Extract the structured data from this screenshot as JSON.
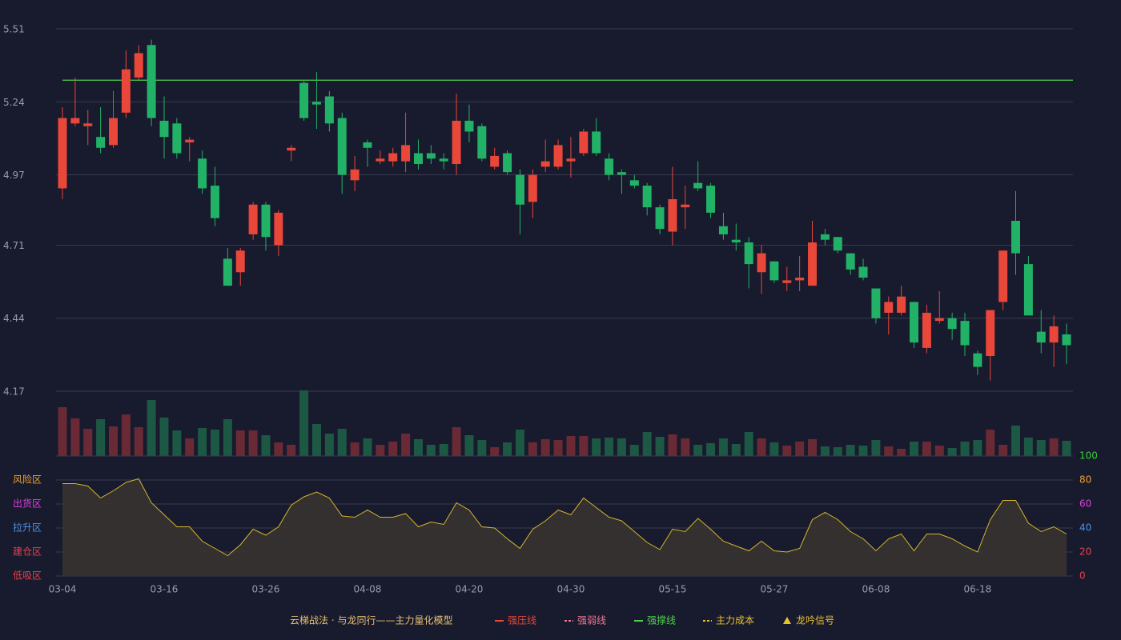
{
  "chart_data": [
    {
      "type": "candlestick",
      "categories": [
        "03-04",
        null,
        null,
        null,
        null,
        null,
        null,
        null,
        "03-16",
        null,
        null,
        null,
        null,
        null,
        null,
        null,
        "03-26",
        null,
        null,
        null,
        null,
        null,
        null,
        null,
        "04-08",
        null,
        null,
        null,
        null,
        null,
        null,
        null,
        "04-20",
        null,
        null,
        null,
        null,
        null,
        null,
        null,
        "04-30",
        null,
        null,
        null,
        null,
        null,
        null,
        null,
        "05-15",
        null,
        null,
        null,
        null,
        null,
        null,
        null,
        "05-27",
        null,
        null,
        null,
        null,
        null,
        null,
        null,
        "06-08",
        null,
        null,
        null,
        null,
        null,
        null,
        null,
        "06-18",
        null,
        null,
        null,
        null,
        null,
        null,
        null
      ],
      "open": [
        4.92,
        5.16,
        5.15,
        5.11,
        5.08,
        5.2,
        5.33,
        5.45,
        5.17,
        5.16,
        5.09,
        5.03,
        4.93,
        4.66,
        4.61,
        4.75,
        4.86,
        4.71,
        5.06,
        5.31,
        5.24,
        5.26,
        5.18,
        4.95,
        5.09,
        5.02,
        5.02,
        5.02,
        5.05,
        5.05,
        5.03,
        5.01,
        5.17,
        5.15,
        5.0,
        5.05,
        4.97,
        4.87,
        5.0,
        5.0,
        5.02,
        5.05,
        5.13,
        5.03,
        4.98,
        4.95,
        4.93,
        4.85,
        4.76,
        4.85,
        4.94,
        4.93,
        4.78,
        4.73,
        4.72,
        4.61,
        4.65,
        4.57,
        4.58,
        4.56,
        4.75,
        4.74,
        4.68,
        4.63,
        4.55,
        4.46,
        4.46,
        4.5,
        4.33,
        4.43,
        4.44,
        4.43,
        4.31,
        4.3,
        4.5,
        4.8,
        4.64,
        4.39,
        4.35,
        4.38
      ],
      "high": [
        5.22,
        5.33,
        5.21,
        5.22,
        5.28,
        5.43,
        5.45,
        5.47,
        5.26,
        5.18,
        5.11,
        5.06,
        5.0,
        4.7,
        4.7,
        4.87,
        4.87,
        4.84,
        5.08,
        5.32,
        5.35,
        5.28,
        5.2,
        5.04,
        5.1,
        5.06,
        5.07,
        5.2,
        5.1,
        5.08,
        5.05,
        5.27,
        5.23,
        5.16,
        5.07,
        5.06,
        4.99,
        4.99,
        5.1,
        5.1,
        5.11,
        5.14,
        5.18,
        5.05,
        4.99,
        4.97,
        4.94,
        4.86,
        5.0,
        4.93,
        5.02,
        4.94,
        4.83,
        4.79,
        4.74,
        4.71,
        4.65,
        4.63,
        4.67,
        4.8,
        4.77,
        4.74,
        4.68,
        4.66,
        4.55,
        4.52,
        4.56,
        4.5,
        4.49,
        4.54,
        4.46,
        4.46,
        4.32,
        4.47,
        4.69,
        4.91,
        4.67,
        4.47,
        4.45,
        4.42
      ],
      "low": [
        4.88,
        5.15,
        5.08,
        5.05,
        5.07,
        5.18,
        5.32,
        5.15,
        5.03,
        5.03,
        5.02,
        4.9,
        4.78,
        4.56,
        4.56,
        4.73,
        4.69,
        4.67,
        5.02,
        5.17,
        5.14,
        5.13,
        4.9,
        4.91,
        5.0,
        5.01,
        5.0,
        4.98,
        4.99,
        5.01,
        4.99,
        4.97,
        5.09,
        5.02,
        4.99,
        4.97,
        4.75,
        4.81,
        4.98,
        4.99,
        4.96,
        5.04,
        5.04,
        4.95,
        4.9,
        4.92,
        4.82,
        4.75,
        4.71,
        4.77,
        4.91,
        4.81,
        4.73,
        4.69,
        4.55,
        4.53,
        4.57,
        4.54,
        4.54,
        4.56,
        4.71,
        4.68,
        4.6,
        4.58,
        4.42,
        4.38,
        4.45,
        4.33,
        4.31,
        4.42,
        4.36,
        4.3,
        4.23,
        4.21,
        4.47,
        4.6,
        4.45,
        4.31,
        4.26,
        4.27
      ],
      "close": [
        5.18,
        5.18,
        5.16,
        5.07,
        5.18,
        5.36,
        5.42,
        5.18,
        5.11,
        5.05,
        5.1,
        4.92,
        4.81,
        4.56,
        4.69,
        4.86,
        4.74,
        4.83,
        5.07,
        5.18,
        5.23,
        5.16,
        4.97,
        4.99,
        5.07,
        5.03,
        5.05,
        5.08,
        5.01,
        5.03,
        5.02,
        5.17,
        5.13,
        5.03,
        5.04,
        4.98,
        4.86,
        4.97,
        5.02,
        5.08,
        5.03,
        5.13,
        5.05,
        4.97,
        4.97,
        4.93,
        4.85,
        4.77,
        4.88,
        4.86,
        4.92,
        4.83,
        4.75,
        4.72,
        4.64,
        4.68,
        4.58,
        4.58,
        4.59,
        4.72,
        4.73,
        4.69,
        4.62,
        4.59,
        4.44,
        4.5,
        4.52,
        4.35,
        4.46,
        4.44,
        4.4,
        4.34,
        4.26,
        4.47,
        4.69,
        4.68,
        4.45,
        4.35,
        4.41,
        4.34
      ],
      "up_color": "#e8473a",
      "down_color": "#22b267",
      "ylim": [
        4.17,
        5.51
      ],
      "yticks": [
        4.17,
        4.44,
        4.71,
        4.97,
        5.24,
        5.51
      ],
      "grid": true,
      "reference_lines": [
        {
          "value": 5.32,
          "color": "#4cd04c"
        }
      ]
    },
    {
      "type": "bar",
      "values": [
        61,
        47,
        34,
        46,
        37,
        52,
        36,
        70,
        48,
        32,
        22,
        35,
        33,
        46,
        32,
        32,
        26,
        17,
        14,
        82,
        40,
        28,
        34,
        17,
        22,
        14,
        18,
        28,
        21,
        14,
        15,
        36,
        26,
        20,
        11,
        17,
        33,
        17,
        21,
        20,
        25,
        25,
        22,
        23,
        22,
        14,
        30,
        24,
        27,
        22,
        14,
        16,
        22,
        15,
        30,
        22,
        17,
        13,
        18,
        21,
        12,
        11,
        14,
        13,
        20,
        12,
        9,
        18,
        18,
        13,
        10,
        18,
        20,
        33,
        14,
        38,
        23,
        20,
        22,
        19
      ],
      "up_color": "#6a2a35",
      "down_color": "#1d5845"
    },
    {
      "type": "area",
      "values": [
        77,
        77,
        75,
        65,
        71,
        78,
        81,
        61,
        51,
        41,
        41,
        29,
        23,
        17,
        26,
        39,
        34,
        41,
        59,
        66,
        70,
        65,
        50,
        49,
        55,
        49,
        49,
        52,
        41,
        45,
        43,
        61,
        55,
        41,
        40,
        31,
        23,
        39,
        46,
        55,
        51,
        65,
        57,
        49,
        46,
        37,
        28,
        22,
        39,
        37,
        48,
        39,
        29,
        25,
        21,
        29,
        21,
        20,
        23,
        47,
        53,
        47,
        37,
        31,
        21,
        31,
        35,
        21,
        35,
        35,
        31,
        25,
        20,
        47,
        63,
        63,
        44,
        37,
        41,
        35
      ],
      "color": "#d6b52c",
      "ylim": [
        0,
        100
      ],
      "yticks": [
        0,
        20,
        40,
        60,
        80,
        100
      ],
      "ytick_colors": [
        "#e8404e",
        "#e8404e",
        "#4a94e8",
        "#e040e0",
        "#f0a030",
        "#3ad03a"
      ],
      "zone_labels": [
        "风险区",
        "出货区",
        "拉升区",
        "建仓区",
        "低吸区"
      ],
      "zone_colors": [
        "#f0a030",
        "#e040e0",
        "#4a94e8",
        "#e8404e",
        "#e8404e"
      ]
    }
  ],
  "legend": {
    "title": "云梯战法 · 与龙同行——主力量化模型",
    "title_color": "#e8c070",
    "items": [
      {
        "name": "强压线",
        "color": "#e8473a",
        "style": "solid"
      },
      {
        "name": "强弱线",
        "color": "#f07890",
        "style": "dashed"
      },
      {
        "name": "强撑线",
        "color": "#4cd04c",
        "style": "solid"
      },
      {
        "name": "主力成本",
        "color": "#e8c030",
        "style": "dashed"
      },
      {
        "name": "龙吟信号",
        "color": "#e8c030",
        "style": "triangle"
      }
    ]
  }
}
